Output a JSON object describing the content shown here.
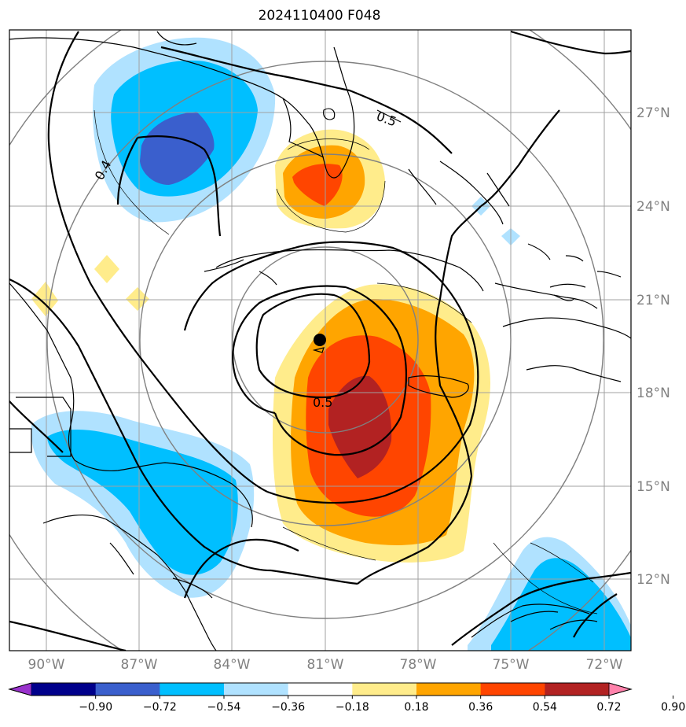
{
  "title": "2024110400 F048",
  "colors": {
    "land_outline": "#000000",
    "grid": "#a0a0a0",
    "range_rings": "#808080",
    "contour": "#000000",
    "storm_center": "#000000"
  },
  "axes": {
    "lon_labels": [
      "90°W",
      "87°W",
      "84°W",
      "81°W",
      "78°W",
      "75°W",
      "72°W"
    ],
    "lat_labels": [
      "27°N",
      "24°N",
      "21°N",
      "18°N",
      "15°N",
      "12°N"
    ]
  },
  "contour_labels": [
    "0.4",
    "0.5",
    "0.5"
  ],
  "colorbar": {
    "colors": [
      "#9932cc",
      "#00008b",
      "#3a5fcd",
      "#00bfff",
      "#b0e2ff",
      "#ffffff",
      "#ffec8b",
      "#ffa500",
      "#ff4500",
      "#b22222",
      "#ff82ab"
    ],
    "tick_labels": [
      "−0.90",
      "−0.72",
      "−0.54",
      "−0.36",
      "−0.18",
      "0.18",
      "0.36",
      "0.54",
      "0.72",
      "0.90"
    ],
    "extend": "both"
  },
  "storm_center_marker": "filled-circle"
}
